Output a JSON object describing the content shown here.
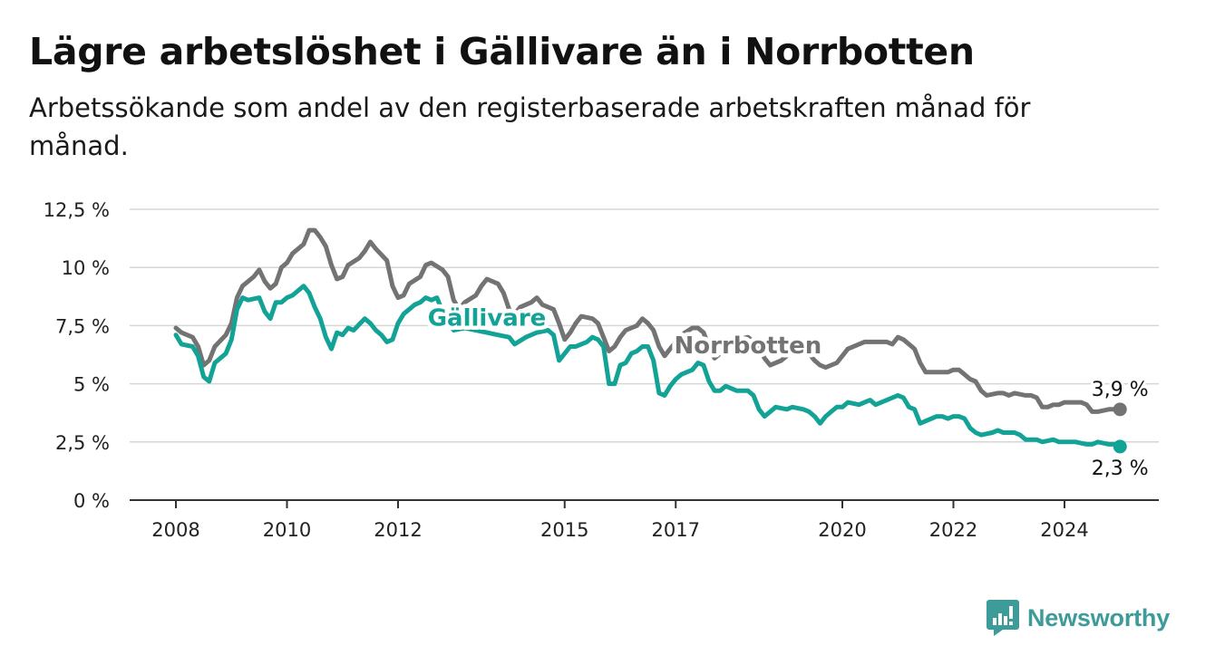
{
  "title": "Lägre arbetslöshet i Gällivare än i Norrbotten",
  "subtitle": "Arbetssökande som andel av den registerbaserade arbetskraften månad för månad.",
  "brand": {
    "name": "Newsworthy",
    "icon": "newsworthy-logo-icon",
    "color": "#3d9b99"
  },
  "chart_data": {
    "type": "line",
    "title": "Lägre arbetslöshet i Gällivare än i Norrbotten",
    "subtitle": "Arbetssökande som andel av den registerbaserade arbetskraften månad för månad.",
    "xlabel": "",
    "ylabel": "",
    "xlim": [
      2007.7,
      2025.5
    ],
    "ylim": [
      0,
      12.5
    ],
    "x_ticks": [
      2008,
      2010,
      2012,
      2015,
      2017,
      2020,
      2022,
      2024
    ],
    "x_tick_labels": [
      "2008",
      "2010",
      "2012",
      "2015",
      "2017",
      "2020",
      "2022",
      "2024"
    ],
    "y_ticks": [
      0,
      2.5,
      5,
      7.5,
      10,
      12.5
    ],
    "y_tick_labels": [
      "0 %",
      "2,5 %",
      "5 %",
      "7,5 %",
      "10 %",
      "12,5 %"
    ],
    "grid": true,
    "legend": "inline labels on lines",
    "end_labels": {
      "Norrbotten": "3,9 %",
      "Gällivare": "2,3 %"
    },
    "series": [
      {
        "name": "Norrbotten",
        "color": "#737373",
        "label": "Norrbotten",
        "label_at": [
          2018.3,
          6.3
        ],
        "points": [
          [
            2008.0,
            7.4
          ],
          [
            2008.1,
            7.2
          ],
          [
            2008.3,
            7.0
          ],
          [
            2008.4,
            6.6
          ],
          [
            2008.5,
            5.8
          ],
          [
            2008.6,
            6.0
          ],
          [
            2008.7,
            6.6
          ],
          [
            2008.9,
            7.1
          ],
          [
            2009.0,
            7.6
          ],
          [
            2009.1,
            8.7
          ],
          [
            2009.2,
            9.2
          ],
          [
            2009.4,
            9.6
          ],
          [
            2009.5,
            9.9
          ],
          [
            2009.6,
            9.4
          ],
          [
            2009.7,
            9.1
          ],
          [
            2009.8,
            9.3
          ],
          [
            2009.9,
            10.0
          ],
          [
            2010.0,
            10.2
          ],
          [
            2010.1,
            10.6
          ],
          [
            2010.3,
            11.0
          ],
          [
            2010.4,
            11.6
          ],
          [
            2010.5,
            11.6
          ],
          [
            2010.6,
            11.3
          ],
          [
            2010.7,
            10.9
          ],
          [
            2010.8,
            10.1
          ],
          [
            2010.9,
            9.5
          ],
          [
            2011.0,
            9.6
          ],
          [
            2011.1,
            10.1
          ],
          [
            2011.3,
            10.4
          ],
          [
            2011.4,
            10.7
          ],
          [
            2011.5,
            11.1
          ],
          [
            2011.6,
            10.8
          ],
          [
            2011.8,
            10.3
          ],
          [
            2011.9,
            9.2
          ],
          [
            2012.0,
            8.7
          ],
          [
            2012.1,
            8.8
          ],
          [
            2012.2,
            9.3
          ],
          [
            2012.4,
            9.6
          ],
          [
            2012.5,
            10.1
          ],
          [
            2012.6,
            10.2
          ],
          [
            2012.8,
            9.9
          ],
          [
            2012.9,
            9.6
          ],
          [
            2013.0,
            8.6
          ],
          [
            2013.1,
            8.2
          ],
          [
            2013.2,
            8.5
          ],
          [
            2013.4,
            8.8
          ],
          [
            2013.5,
            9.2
          ],
          [
            2013.6,
            9.5
          ],
          [
            2013.8,
            9.3
          ],
          [
            2013.9,
            8.9
          ],
          [
            2014.0,
            8.2
          ],
          [
            2014.1,
            8.0
          ],
          [
            2014.2,
            8.3
          ],
          [
            2014.4,
            8.5
          ],
          [
            2014.5,
            8.7
          ],
          [
            2014.6,
            8.4
          ],
          [
            2014.8,
            8.2
          ],
          [
            2014.9,
            7.6
          ],
          [
            2015.0,
            6.9
          ],
          [
            2015.1,
            7.2
          ],
          [
            2015.2,
            7.6
          ],
          [
            2015.3,
            7.9
          ],
          [
            2015.5,
            7.8
          ],
          [
            2015.6,
            7.6
          ],
          [
            2015.7,
            7.0
          ],
          [
            2015.8,
            6.4
          ],
          [
            2015.9,
            6.6
          ],
          [
            2016.0,
            7.0
          ],
          [
            2016.1,
            7.3
          ],
          [
            2016.3,
            7.5
          ],
          [
            2016.4,
            7.8
          ],
          [
            2016.5,
            7.6
          ],
          [
            2016.6,
            7.3
          ],
          [
            2016.7,
            6.6
          ],
          [
            2016.8,
            6.2
          ],
          [
            2016.9,
            6.5
          ],
          [
            2017.0,
            6.8
          ],
          [
            2017.1,
            7.1
          ],
          [
            2017.3,
            7.4
          ],
          [
            2017.4,
            7.4
          ],
          [
            2017.5,
            7.2
          ],
          [
            2017.6,
            6.6
          ],
          [
            2017.7,
            6.1
          ],
          [
            2017.8,
            6.3
          ],
          [
            2017.9,
            6.6
          ],
          [
            2018.0,
            6.8
          ],
          [
            2018.1,
            6.9
          ],
          [
            2018.3,
            7.0
          ],
          [
            2018.4,
            6.8
          ],
          [
            2018.5,
            6.5
          ],
          [
            2018.6,
            6.1
          ],
          [
            2018.7,
            5.8
          ],
          [
            2018.9,
            6.0
          ],
          [
            2019.0,
            6.2
          ],
          [
            2019.1,
            6.4
          ],
          [
            2019.3,
            6.5
          ],
          [
            2019.4,
            6.3
          ],
          [
            2019.5,
            6.0
          ],
          [
            2019.6,
            5.8
          ],
          [
            2019.7,
            5.7
          ],
          [
            2019.9,
            5.9
          ],
          [
            2020.0,
            6.2
          ],
          [
            2020.1,
            6.5
          ],
          [
            2020.3,
            6.7
          ],
          [
            2020.4,
            6.8
          ],
          [
            2020.5,
            6.8
          ],
          [
            2020.7,
            6.8
          ],
          [
            2020.8,
            6.8
          ],
          [
            2020.9,
            6.7
          ],
          [
            2021.0,
            7.0
          ],
          [
            2021.1,
            6.9
          ],
          [
            2021.3,
            6.5
          ],
          [
            2021.4,
            5.9
          ],
          [
            2021.5,
            5.5
          ],
          [
            2021.6,
            5.5
          ],
          [
            2021.8,
            5.5
          ],
          [
            2021.9,
            5.5
          ],
          [
            2022.0,
            5.6
          ],
          [
            2022.1,
            5.6
          ],
          [
            2022.2,
            5.4
          ],
          [
            2022.3,
            5.2
          ],
          [
            2022.4,
            5.1
          ],
          [
            2022.5,
            4.7
          ],
          [
            2022.6,
            4.5
          ],
          [
            2022.8,
            4.6
          ],
          [
            2022.9,
            4.6
          ],
          [
            2023.0,
            4.5
          ],
          [
            2023.1,
            4.6
          ],
          [
            2023.3,
            4.5
          ],
          [
            2023.4,
            4.5
          ],
          [
            2023.5,
            4.4
          ],
          [
            2023.6,
            4.0
          ],
          [
            2023.7,
            4.0
          ],
          [
            2023.8,
            4.1
          ],
          [
            2023.9,
            4.1
          ],
          [
            2024.0,
            4.2
          ],
          [
            2024.2,
            4.2
          ],
          [
            2024.3,
            4.2
          ],
          [
            2024.4,
            4.1
          ],
          [
            2024.5,
            3.8
          ],
          [
            2024.6,
            3.8
          ],
          [
            2024.8,
            3.9
          ],
          [
            2024.9,
            3.9
          ],
          [
            2025.0,
            3.9
          ]
        ]
      },
      {
        "name": "Gällivare",
        "color": "#13a396",
        "label": "Gällivare",
        "label_at": [
          2013.6,
          7.5
        ],
        "points": [
          [
            2008.0,
            7.1
          ],
          [
            2008.1,
            6.7
          ],
          [
            2008.3,
            6.6
          ],
          [
            2008.4,
            6.2
          ],
          [
            2008.5,
            5.3
          ],
          [
            2008.6,
            5.1
          ],
          [
            2008.7,
            5.9
          ],
          [
            2008.9,
            6.3
          ],
          [
            2009.0,
            6.9
          ],
          [
            2009.1,
            8.2
          ],
          [
            2009.2,
            8.7
          ],
          [
            2009.3,
            8.6
          ],
          [
            2009.5,
            8.7
          ],
          [
            2009.6,
            8.1
          ],
          [
            2009.7,
            7.8
          ],
          [
            2009.8,
            8.5
          ],
          [
            2009.9,
            8.5
          ],
          [
            2010.0,
            8.7
          ],
          [
            2010.1,
            8.8
          ],
          [
            2010.3,
            9.2
          ],
          [
            2010.4,
            8.9
          ],
          [
            2010.5,
            8.3
          ],
          [
            2010.6,
            7.8
          ],
          [
            2010.7,
            7.0
          ],
          [
            2010.8,
            6.5
          ],
          [
            2010.9,
            7.2
          ],
          [
            2011.0,
            7.1
          ],
          [
            2011.1,
            7.4
          ],
          [
            2011.2,
            7.3
          ],
          [
            2011.4,
            7.8
          ],
          [
            2011.5,
            7.6
          ],
          [
            2011.6,
            7.3
          ],
          [
            2011.7,
            7.1
          ],
          [
            2011.8,
            6.8
          ],
          [
            2011.9,
            6.9
          ],
          [
            2012.0,
            7.6
          ],
          [
            2012.1,
            8.0
          ],
          [
            2012.3,
            8.4
          ],
          [
            2012.4,
            8.5
          ],
          [
            2012.5,
            8.7
          ],
          [
            2012.6,
            8.6
          ],
          [
            2012.7,
            8.7
          ],
          [
            2012.8,
            8.1
          ],
          [
            2013.0,
            7.3
          ],
          [
            2013.2,
            7.4
          ],
          [
            2013.4,
            7.3
          ],
          [
            2013.6,
            7.2
          ],
          [
            2013.8,
            7.1
          ],
          [
            2014.0,
            7.0
          ],
          [
            2014.1,
            6.7
          ],
          [
            2014.3,
            7.0
          ],
          [
            2014.5,
            7.2
          ],
          [
            2014.7,
            7.3
          ],
          [
            2014.8,
            7.1
          ],
          [
            2014.9,
            6.0
          ],
          [
            2015.0,
            6.3
          ],
          [
            2015.1,
            6.6
          ],
          [
            2015.2,
            6.6
          ],
          [
            2015.4,
            6.8
          ],
          [
            2015.5,
            7.0
          ],
          [
            2015.6,
            6.9
          ],
          [
            2015.7,
            6.6
          ],
          [
            2015.8,
            5.0
          ],
          [
            2015.9,
            5.0
          ],
          [
            2016.0,
            5.8
          ],
          [
            2016.1,
            5.9
          ],
          [
            2016.2,
            6.3
          ],
          [
            2016.3,
            6.4
          ],
          [
            2016.4,
            6.6
          ],
          [
            2016.5,
            6.6
          ],
          [
            2016.6,
            6.0
          ],
          [
            2016.7,
            4.6
          ],
          [
            2016.8,
            4.5
          ],
          [
            2016.9,
            4.9
          ],
          [
            2017.0,
            5.2
          ],
          [
            2017.1,
            5.4
          ],
          [
            2017.3,
            5.6
          ],
          [
            2017.4,
            5.9
          ],
          [
            2017.5,
            5.8
          ],
          [
            2017.6,
            5.1
          ],
          [
            2017.7,
            4.7
          ],
          [
            2017.8,
            4.7
          ],
          [
            2017.9,
            4.9
          ],
          [
            2018.0,
            4.8
          ],
          [
            2018.1,
            4.7
          ],
          [
            2018.3,
            4.7
          ],
          [
            2018.4,
            4.5
          ],
          [
            2018.5,
            3.9
          ],
          [
            2018.6,
            3.6
          ],
          [
            2018.7,
            3.8
          ],
          [
            2018.8,
            4.0
          ],
          [
            2019.0,
            3.9
          ],
          [
            2019.1,
            4.0
          ],
          [
            2019.3,
            3.9
          ],
          [
            2019.4,
            3.8
          ],
          [
            2019.5,
            3.6
          ],
          [
            2019.6,
            3.3
          ],
          [
            2019.7,
            3.6
          ],
          [
            2019.8,
            3.8
          ],
          [
            2019.9,
            4.0
          ],
          [
            2020.0,
            4.0
          ],
          [
            2020.1,
            4.2
          ],
          [
            2020.3,
            4.1
          ],
          [
            2020.4,
            4.2
          ],
          [
            2020.5,
            4.3
          ],
          [
            2020.6,
            4.1
          ],
          [
            2020.8,
            4.3
          ],
          [
            2020.9,
            4.4
          ],
          [
            2021.0,
            4.5
          ],
          [
            2021.1,
            4.4
          ],
          [
            2021.2,
            4.0
          ],
          [
            2021.3,
            3.9
          ],
          [
            2021.4,
            3.3
          ],
          [
            2021.5,
            3.4
          ],
          [
            2021.7,
            3.6
          ],
          [
            2021.8,
            3.6
          ],
          [
            2021.9,
            3.5
          ],
          [
            2022.0,
            3.6
          ],
          [
            2022.1,
            3.6
          ],
          [
            2022.2,
            3.5
          ],
          [
            2022.3,
            3.1
          ],
          [
            2022.4,
            2.9
          ],
          [
            2022.5,
            2.8
          ],
          [
            2022.7,
            2.9
          ],
          [
            2022.8,
            3.0
          ],
          [
            2022.9,
            2.9
          ],
          [
            2023.1,
            2.9
          ],
          [
            2023.2,
            2.8
          ],
          [
            2023.3,
            2.6
          ],
          [
            2023.5,
            2.6
          ],
          [
            2023.6,
            2.5
          ],
          [
            2023.8,
            2.6
          ],
          [
            2023.9,
            2.5
          ],
          [
            2024.1,
            2.5
          ],
          [
            2024.2,
            2.5
          ],
          [
            2024.4,
            2.4
          ],
          [
            2024.5,
            2.4
          ],
          [
            2024.6,
            2.5
          ],
          [
            2024.8,
            2.4
          ],
          [
            2024.9,
            2.4
          ],
          [
            2025.0,
            2.3
          ]
        ]
      }
    ]
  }
}
